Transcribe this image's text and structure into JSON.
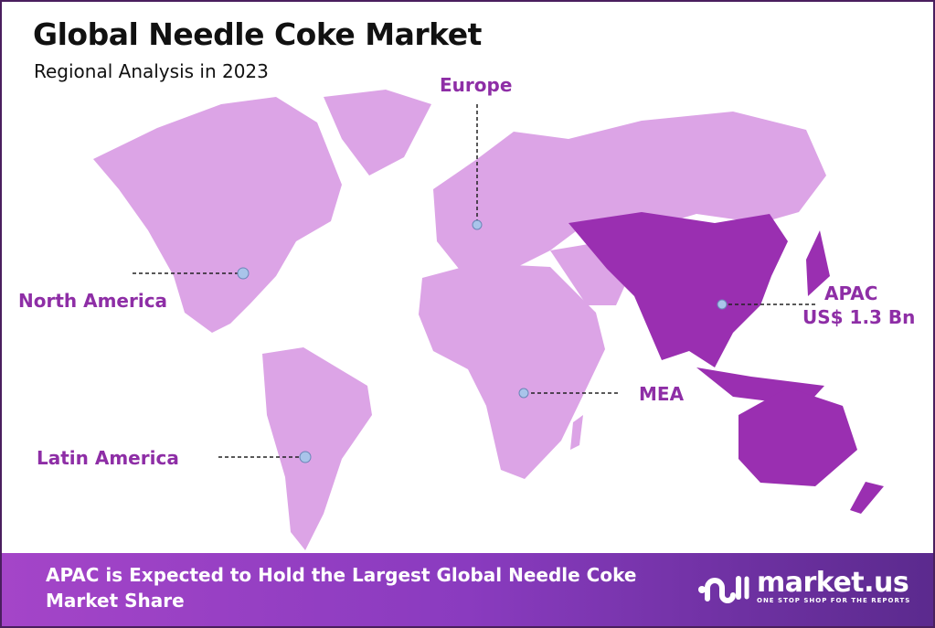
{
  "header": {
    "title": "Global Needle Coke Market",
    "subtitle": "Regional Analysis in 2023"
  },
  "map": {
    "regions": [
      {
        "name": "Europe",
        "highlighted": false
      },
      {
        "name": "North America",
        "highlighted": false
      },
      {
        "name": "Latin America",
        "highlighted": false
      },
      {
        "name": "MEA",
        "highlighted": false
      },
      {
        "name": "APAC",
        "value": "US$ 1.3 Bn",
        "highlighted": true
      }
    ],
    "colors": {
      "base_land": "#dca4e6",
      "highlight_land": "#9a2fb1",
      "label": "#8e2ea6",
      "marker": "#a9c4ea"
    }
  },
  "footer": {
    "text": "APAC is Expected to Hold the Largest Global Needle Coke Market Share",
    "logo": {
      "name": "market.us",
      "tagline": "ONE STOP SHOP FOR THE REPORTS"
    }
  }
}
